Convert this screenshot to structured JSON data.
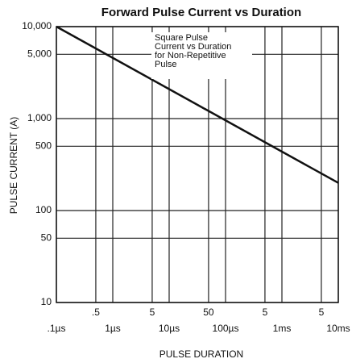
{
  "chart_data": {
    "type": "line",
    "title": "Forward Pulse Current vs Duration",
    "x_label": "PULSE DURATION",
    "y_label": "PULSE CURRENT (A)",
    "annotation": [
      "Square Pulse",
      "Current vs Duration",
      "for Non-Repetitive",
      "Pulse"
    ],
    "log_x": true,
    "log_y": true,
    "grid": true,
    "xlim": [
      1e-07,
      0.01
    ],
    "ylim": [
      10,
      10000
    ],
    "xticks": [
      {
        "value": 1e-07,
        "label": ".1µs"
      },
      {
        "value": 5e-07,
        "label": ".5"
      },
      {
        "value": 1e-06,
        "label": "1µs"
      },
      {
        "value": 5e-06,
        "label": "5"
      },
      {
        "value": 1e-05,
        "label": "10µs"
      },
      {
        "value": 5e-05,
        "label": "50"
      },
      {
        "value": 0.0001,
        "label": "100µs"
      },
      {
        "value": 0.0005,
        "label": "5"
      },
      {
        "value": 0.001,
        "label": "1ms"
      },
      {
        "value": 0.005,
        "label": "5"
      },
      {
        "value": 0.01,
        "label": "10ms"
      }
    ],
    "yticks": [
      {
        "value": 10000,
        "label": "10,000"
      },
      {
        "value": 5000,
        "label": "5,000"
      },
      {
        "value": 1000,
        "label": "1,000"
      },
      500,
      100,
      50,
      10
    ],
    "x": [
      1e-07,
      0.01
    ],
    "series": [
      {
        "name": "Square Pulse Current",
        "color": "#111111",
        "values": [
          10000,
          200
        ]
      }
    ]
  }
}
